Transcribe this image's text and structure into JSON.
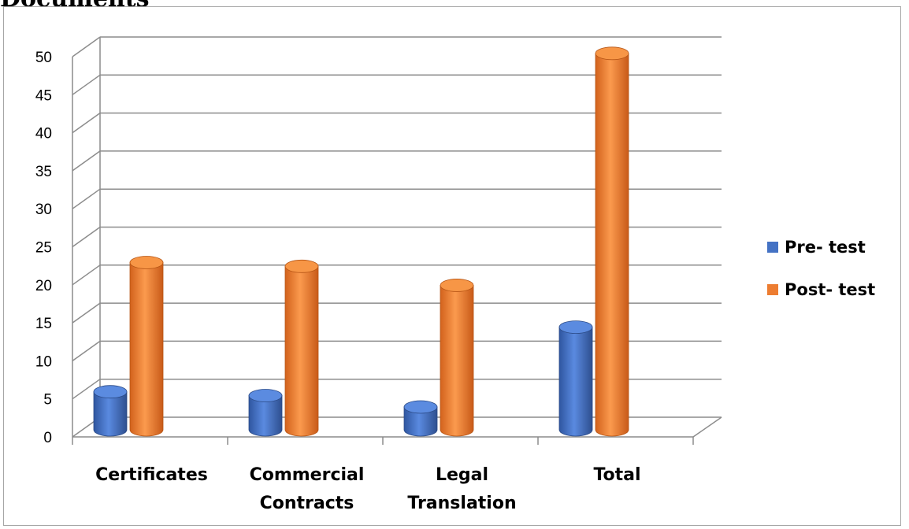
{
  "page": {
    "heading": "Documents"
  },
  "chart_data": {
    "type": "bar",
    "title": "",
    "xlabel": "",
    "ylabel": "",
    "categories": [
      [
        "Certificates"
      ],
      [
        "Commercial",
        "Contracts"
      ],
      [
        "Legal",
        "Translation"
      ],
      [
        "Total"
      ]
    ],
    "series": [
      {
        "name": "Pre- test",
        "values": [
          5,
          4.5,
          3,
          13.5
        ],
        "color": "#4472c4"
      },
      {
        "name": "Post- test",
        "values": [
          22,
          21.5,
          19,
          49.5
        ],
        "color": "#ed7d31"
      }
    ],
    "ylim": [
      0,
      50
    ],
    "yticks": [
      0,
      5,
      10,
      15,
      20,
      25,
      30,
      35,
      40,
      45,
      50
    ],
    "grid": true,
    "style3d": "cylinder",
    "legend_position": "right"
  }
}
